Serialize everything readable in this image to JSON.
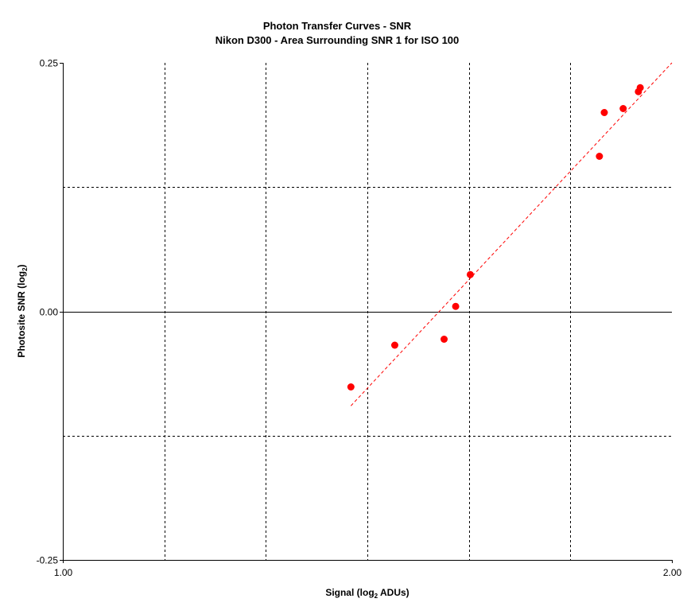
{
  "chart_data": {
    "type": "scatter",
    "title_line1": "Photon Transfer Curves - SNR",
    "title_line2": "Nikon D300 - Area Surrounding SNR 1 for ISO 100",
    "xlabel": {
      "prefix": "Signal (log",
      "sub": "2",
      "suffix": " ADUs)"
    },
    "ylabel": {
      "prefix": "Photosite SNR (log",
      "sub": "2",
      "suffix": ")"
    },
    "xlim": [
      1.0,
      2.0
    ],
    "ylim": [
      -0.25,
      0.25
    ],
    "x_ticks": [
      {
        "value": 1.0,
        "label": "1.00"
      },
      {
        "value": 2.0,
        "label": "2.00"
      }
    ],
    "y_ticks": [
      {
        "value": 0.25,
        "label": "0.25"
      },
      {
        "value": 0.0,
        "label": "0.00"
      },
      {
        "value": -0.25,
        "label": "-0.25"
      }
    ],
    "x_gridlines": [
      1.1667,
      1.3333,
      1.5,
      1.6667,
      1.8333
    ],
    "y_gridlines": [
      0.125,
      -0.125
    ],
    "zero_line": 0.0,
    "grid": true,
    "legend": "none",
    "marker_color": "#ff0000",
    "trend_color": "#ff0000",
    "series": [
      {
        "points": [
          {
            "x": 1.473,
            "y": -0.076
          },
          {
            "x": 1.545,
            "y": -0.034
          },
          {
            "x": 1.626,
            "y": -0.028
          },
          {
            "x": 1.645,
            "y": 0.005
          },
          {
            "x": 1.669,
            "y": 0.037
          },
          {
            "x": 1.881,
            "y": 0.156
          },
          {
            "x": 1.889,
            "y": 0.2
          },
          {
            "x": 1.92,
            "y": 0.204
          },
          {
            "x": 1.945,
            "y": 0.221
          },
          {
            "x": 1.948,
            "y": 0.225
          }
        ]
      }
    ],
    "trendline": {
      "x0": 1.473,
      "y0": -0.095,
      "x1": 2.0,
      "y1": 0.25
    }
  }
}
